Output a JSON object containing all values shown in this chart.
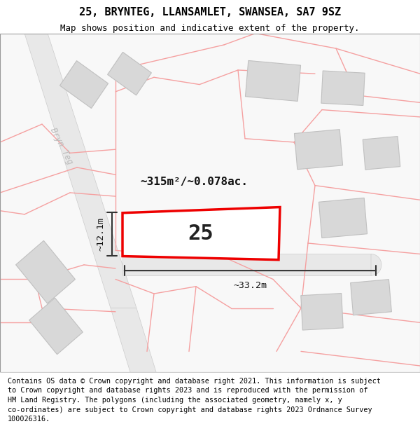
{
  "title": "25, BRYNTEG, LLANSAMLET, SWANSEA, SA7 9SZ",
  "subtitle": "Map shows position and indicative extent of the property.",
  "footer": "Contains OS data © Crown copyright and database right 2021. This information is subject\nto Crown copyright and database rights 2023 and is reproduced with the permission of\nHM Land Registry. The polygons (including the associated geometry, namely x, y\nco-ordinates) are subject to Crown copyright and database rights 2023 Ordnance Survey\n100026316.",
  "area_label": "~315m²/~0.078ac.",
  "width_label": "~33.2m",
  "height_label": "~12.1m",
  "plot_number": "25",
  "bg_color": "#ffffff",
  "plot_border_color": "#ee0000",
  "plot_fill_color": "#ffffff",
  "building_fill": "#d8d8d8",
  "building_edge": "#c0c0c0",
  "pink_line_color": "#f5a0a0",
  "road_fill": "#e8e8e8",
  "road_edge": "#cccccc",
  "road_center_fill": "#e0e0e0",
  "dim_line_color": "#333333",
  "street_label_color": "#bbbbbb",
  "title_fontsize": 11,
  "subtitle_fontsize": 9,
  "footer_fontsize": 7.3,
  "plot_label_fontsize": 22,
  "area_fontsize": 11.5,
  "dim_fontsize": 9.5,
  "street_fontsize": 8.5
}
